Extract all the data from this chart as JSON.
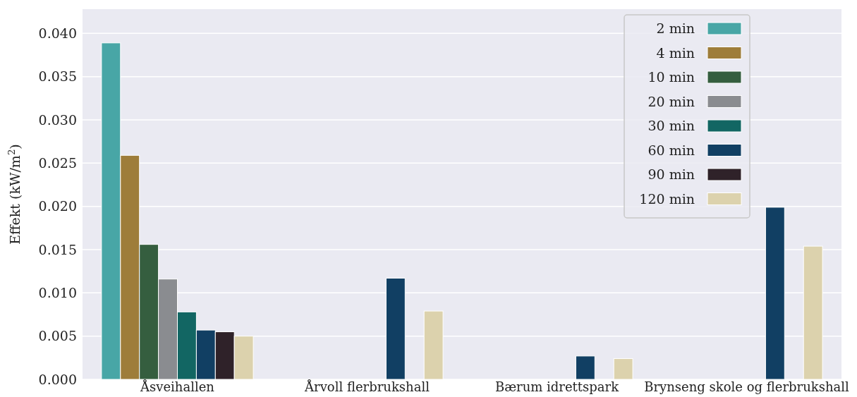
{
  "chart_data": {
    "type": "bar",
    "ylabel": "Effekt (kW/m$^{2}$)",
    "categories": [
      "Åsveihallen",
      "Årvoll flerbrukshall",
      "Bærum idrettspark",
      "Brynseng skole og flerbrukshall"
    ],
    "series": [
      {
        "name": "2 min",
        "color": "#48a6a6",
        "values": [
          0.0389,
          null,
          null,
          null
        ]
      },
      {
        "name": "4 min",
        "color": "#9e7d3a",
        "values": [
          0.0259,
          null,
          null,
          null
        ]
      },
      {
        "name": "10 min",
        "color": "#355e3f",
        "values": [
          0.0156,
          null,
          null,
          null
        ]
      },
      {
        "name": "20 min",
        "color": "#8a8c90",
        "values": [
          0.0116,
          null,
          null,
          null
        ]
      },
      {
        "name": "30 min",
        "color": "#126663",
        "values": [
          0.0078,
          null,
          null,
          null
        ]
      },
      {
        "name": "60 min",
        "color": "#113f63",
        "values": [
          0.0057,
          0.0117,
          0.0027,
          0.0199
        ]
      },
      {
        "name": "90 min",
        "color": "#2f2229",
        "values": [
          0.0055,
          null,
          null,
          null
        ]
      },
      {
        "name": "120 min",
        "color": "#dcd2ad",
        "values": [
          0.005,
          0.0079,
          0.0024,
          0.0154
        ]
      }
    ],
    "ylim": [
      0,
      0.0428
    ],
    "yticks": [
      {
        "value": 0,
        "label": "0.000"
      },
      {
        "value": 0.005,
        "label": "0.005"
      },
      {
        "value": 0.01,
        "label": "0.010"
      },
      {
        "value": 0.015,
        "label": "0.015"
      },
      {
        "value": 0.02,
        "label": "0.020"
      },
      {
        "value": 0.025,
        "label": "0.025"
      },
      {
        "value": 0.03,
        "label": "0.030"
      },
      {
        "value": 0.035,
        "label": "0.035"
      },
      {
        "value": 0.04,
        "label": "0.040"
      }
    ],
    "grid": "y",
    "legend": "top right"
  }
}
